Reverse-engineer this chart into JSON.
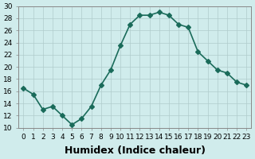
{
  "x": [
    0,
    1,
    2,
    3,
    4,
    5,
    6,
    7,
    8,
    9,
    10,
    11,
    12,
    13,
    14,
    15,
    16,
    17,
    18,
    19,
    20,
    21,
    22,
    23
  ],
  "y": [
    16.5,
    15.5,
    13.0,
    13.5,
    12.0,
    10.5,
    11.5,
    13.5,
    17.0,
    19.5,
    23.5,
    27.0,
    28.5,
    28.5,
    29.0,
    28.5,
    27.0,
    26.5,
    22.5,
    21.0,
    19.5,
    19.0,
    17.5,
    17.0
  ],
  "line_color": "#1a6b5a",
  "marker": "D",
  "markersize": 3,
  "linewidth": 1.2,
  "bg_color": "#d0ecec",
  "grid_color": "#b0cccc",
  "xlabel": "Humidex (Indice chaleur)",
  "xlabel_fontsize": 9,
  "xlim": [
    -0.5,
    23.5
  ],
  "ylim": [
    10,
    30
  ],
  "yticks": [
    10,
    12,
    14,
    16,
    18,
    20,
    22,
    24,
    26,
    28,
    30
  ],
  "xticks": [
    0,
    1,
    2,
    3,
    4,
    5,
    6,
    7,
    8,
    9,
    10,
    11,
    12,
    13,
    14,
    15,
    16,
    17,
    18,
    19,
    20,
    21,
    22,
    23
  ],
  "tick_fontsize": 6.5,
  "grid_linestyle": "-",
  "grid_linewidth": 0.5,
  "spine_color": "#888888"
}
